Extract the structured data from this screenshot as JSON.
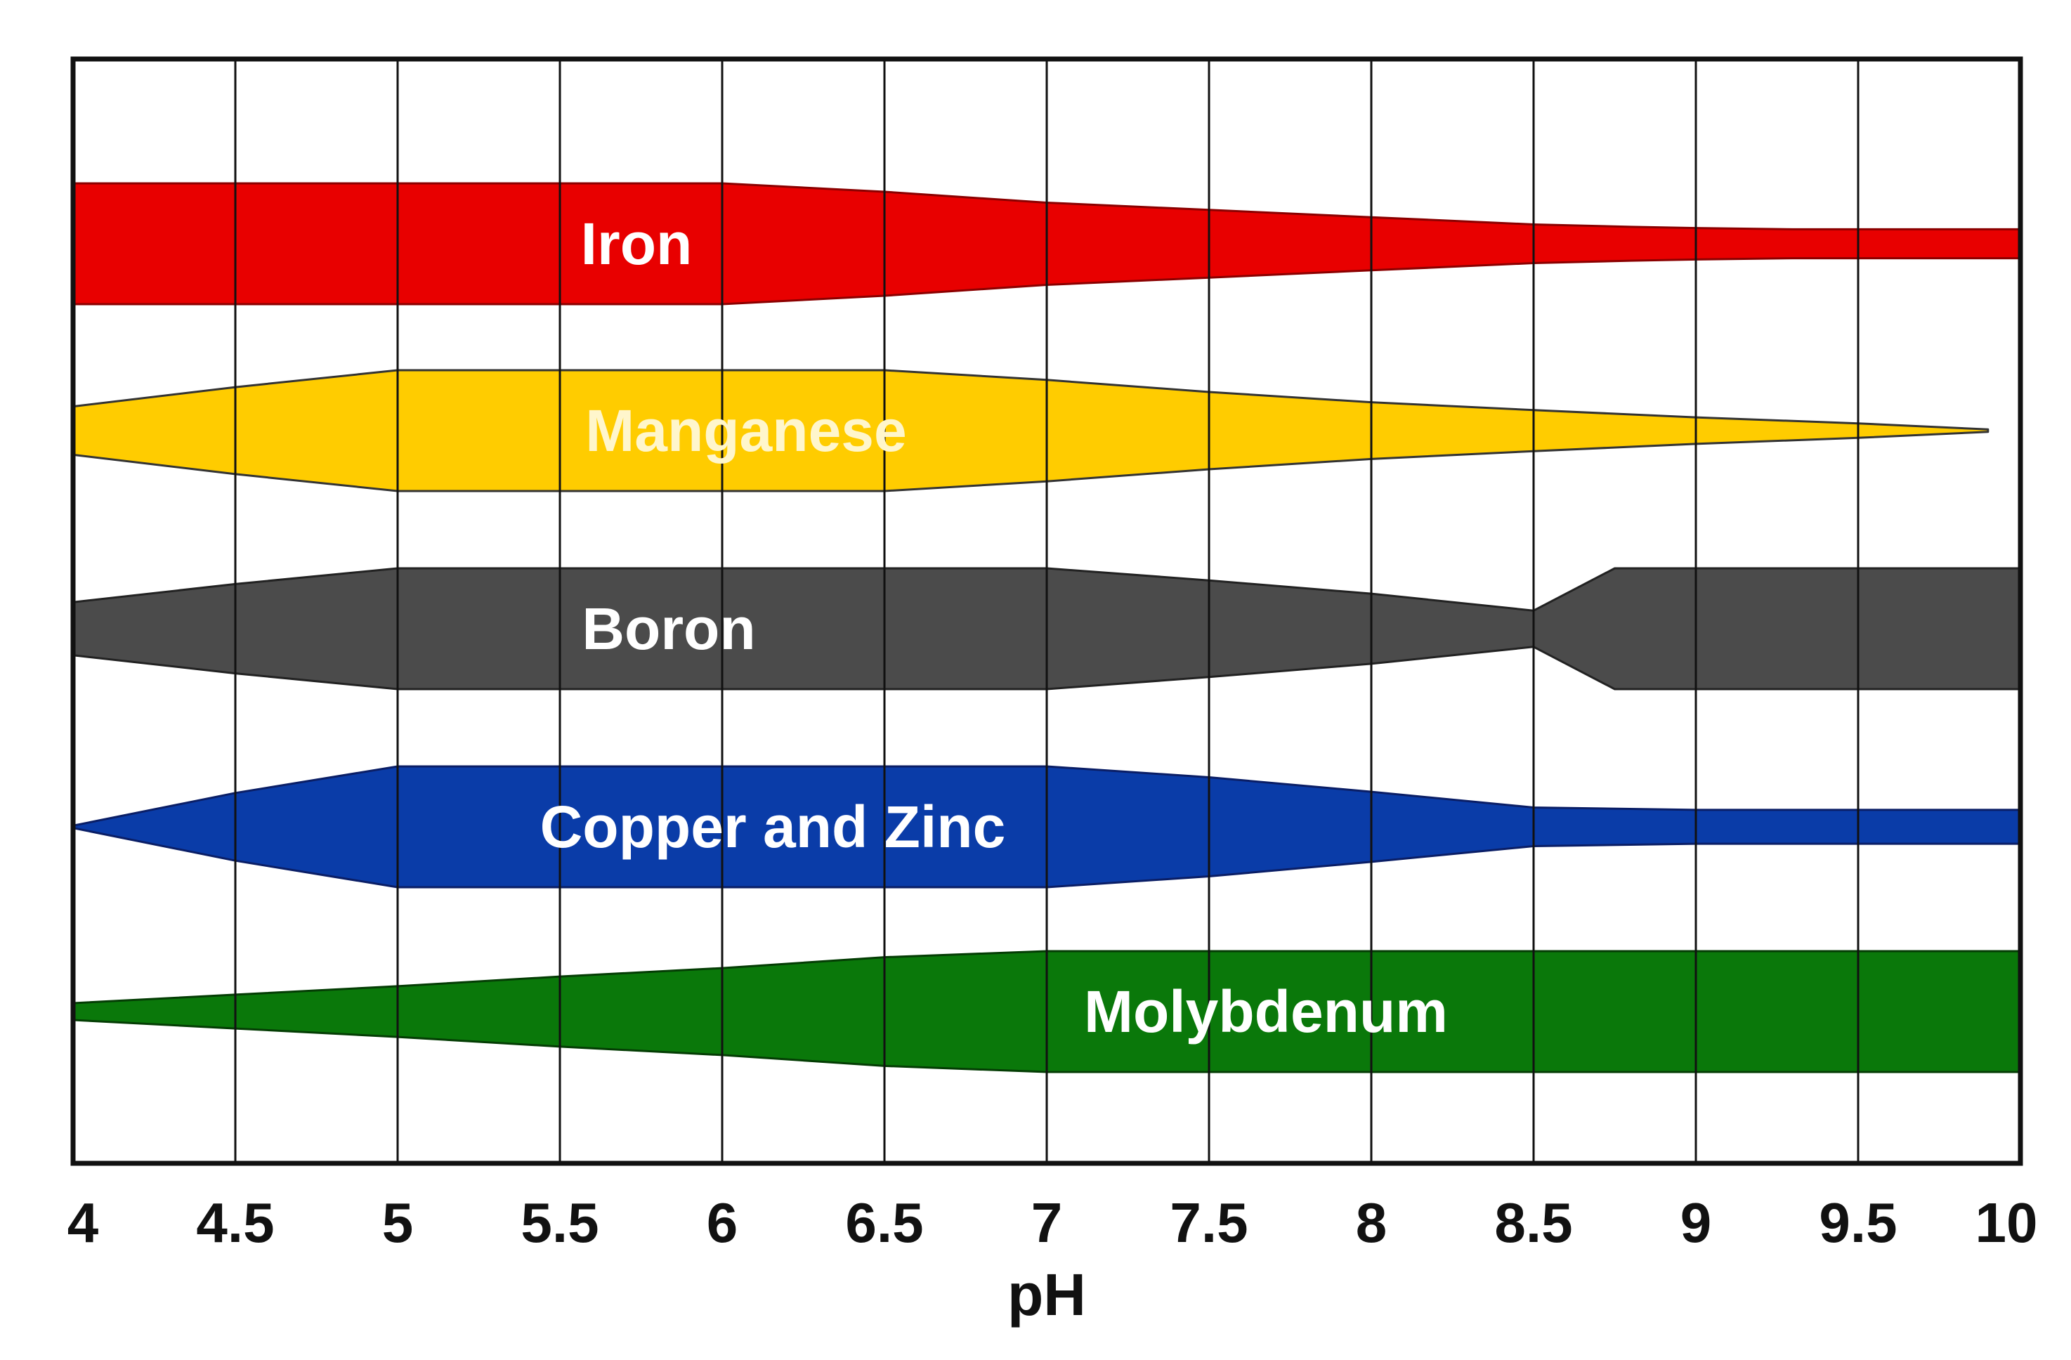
{
  "chart_data": {
    "type": "area",
    "xlabel": "pH",
    "ylabel": "",
    "xlim": [
      4,
      10
    ],
    "x_ticks": [
      "4",
      "4.5",
      "5",
      "5.5",
      "6",
      "6.5",
      "7",
      "7.5",
      "8",
      "8.5",
      "9",
      "9.5",
      "10"
    ],
    "grid": "vertical",
    "legend": "none",
    "value_meaning": "band thickness = relative availability (0-1)",
    "series": [
      {
        "name": "Iron",
        "color": "#e80000",
        "stroke": "#8b0000",
        "x": [
          4,
          4.5,
          5,
          5.5,
          6,
          6.5,
          7,
          7.5,
          8,
          8.5,
          8.8,
          9,
          9.3,
          9.5,
          10
        ],
        "values": [
          1.0,
          1.0,
          1.0,
          1.0,
          1.0,
          0.86,
          0.68,
          0.56,
          0.44,
          0.32,
          0.28,
          0.26,
          0.24,
          0.24,
          0.24
        ]
      },
      {
        "name": "Manganese",
        "color": "#ffcc00",
        "stroke": "#333333",
        "x": [
          4,
          4.5,
          5,
          5.5,
          6,
          6.5,
          7,
          7.5,
          8,
          8.5,
          9,
          9.5,
          9.9
        ],
        "values": [
          0.4,
          0.72,
          1.0,
          1.0,
          1.0,
          1.0,
          0.84,
          0.64,
          0.47,
          0.34,
          0.22,
          0.12,
          0.02
        ]
      },
      {
        "name": "Boron",
        "color": "#4b4b4b",
        "stroke": "#222222",
        "x": [
          4,
          4.5,
          5,
          5.5,
          6,
          6.5,
          7,
          7.5,
          8,
          8.5,
          8.75,
          9,
          9.5,
          10
        ],
        "values": [
          0.44,
          0.74,
          1.0,
          1.0,
          1.0,
          1.0,
          1.0,
          0.8,
          0.58,
          0.3,
          1.0,
          1.0,
          1.0,
          1.0
        ]
      },
      {
        "name": "Copper and Zinc",
        "color": "#0a3ca8",
        "stroke": "#0a1e66",
        "x": [
          4,
          4.5,
          5,
          5.5,
          6,
          6.5,
          7,
          7.5,
          8,
          8.5,
          9,
          9.5,
          10
        ],
        "values": [
          0.02,
          0.56,
          1.0,
          1.0,
          1.0,
          1.0,
          1.0,
          0.82,
          0.58,
          0.32,
          0.28,
          0.28,
          0.28
        ]
      },
      {
        "name": "Molybdenum",
        "color": "#0a780a",
        "stroke": "#043d04",
        "x": [
          4,
          4.5,
          5,
          5.5,
          6,
          6.5,
          7,
          7.5,
          8,
          8.5,
          9,
          9.5,
          10
        ],
        "values": [
          0.14,
          0.28,
          0.42,
          0.58,
          0.72,
          0.9,
          1.0,
          1.0,
          1.0,
          1.0,
          1.0,
          1.0,
          1.0
        ]
      }
    ]
  }
}
